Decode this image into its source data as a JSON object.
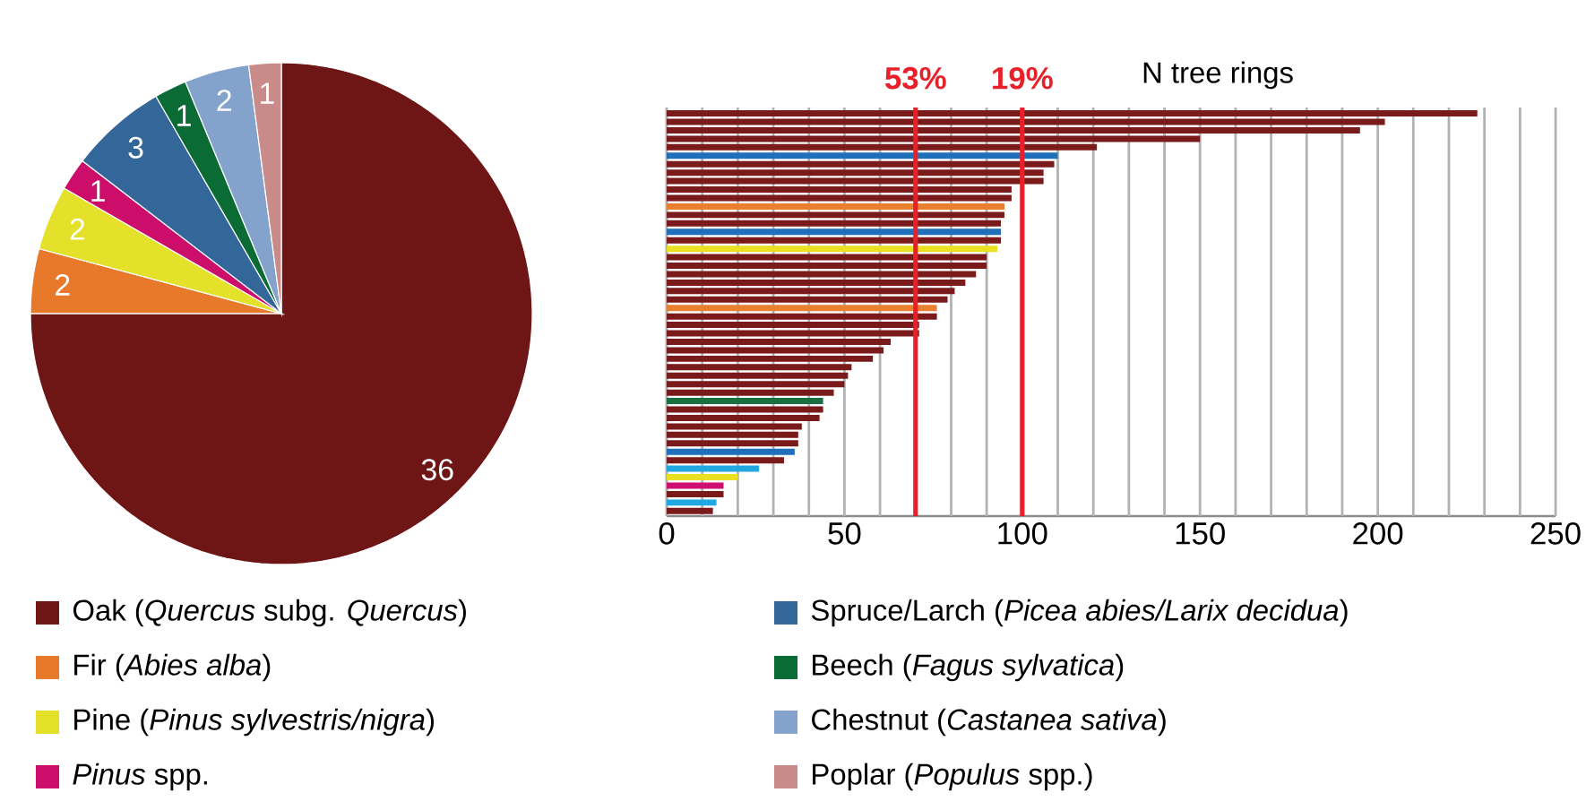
{
  "chart_data": [
    {
      "type": "pie",
      "categories": [
        "Oak (*Quercus* subg. *Quercus*)",
        "Fir (*Abies alba*)",
        "Pine (*Pinus sylvestris/nigra*)",
        "*Pinus* spp.",
        "Spruce/Larch (*Picea abies/Larix decidua*)",
        "Beech (*Fagus sylvatica*)",
        "Chestnut (*Castanea sativa*)",
        "Poplar (*Populus* spp.)"
      ],
      "values": [
        36,
        2,
        2,
        1,
        3,
        1,
        2,
        1
      ],
      "colors": [
        "#6e1515",
        "#e8782a",
        "#e5e02a",
        "#cc0e6a",
        "#336699",
        "#0b6b35",
        "#84a3cc",
        "#c98a8a"
      ],
      "data_labels": true,
      "legend": "bottom"
    },
    {
      "type": "bar",
      "orientation": "horizontal",
      "xlabel": "N tree rings",
      "categories": [
        null,
        null,
        null,
        null,
        null,
        null,
        null,
        null,
        null,
        null,
        null,
        null,
        null,
        null,
        null,
        null,
        null,
        null,
        null,
        null,
        null,
        null,
        null,
        null,
        null,
        null,
        null,
        null,
        null,
        null,
        null,
        null,
        null,
        null,
        null,
        null,
        null,
        null,
        null,
        null,
        null,
        null,
        null,
        null,
        null,
        null,
        null,
        null
      ],
      "values": [
        228,
        202,
        195,
        150,
        121,
        110,
        109,
        106,
        106,
        97,
        97,
        95,
        95,
        94,
        94,
        94,
        93,
        90,
        90,
        87,
        84,
        81,
        79,
        76,
        76,
        71,
        71,
        63,
        61,
        58,
        52,
        51,
        50,
        47,
        44,
        44,
        43,
        38,
        37,
        37,
        36,
        33,
        26,
        20,
        16,
        16,
        14,
        13
      ],
      "colors": [
        "#7a1a1a",
        "#7a1a1a",
        "#7a1a1a",
        "#7a1a1a",
        "#7a1a1a",
        "#1f6fba",
        "#7a1a1a",
        "#7a1a1a",
        "#7a1a1a",
        "#7a1a1a",
        "#7a1a1a",
        "#e88030",
        "#7a1a1a",
        "#7a1a1a",
        "#1f6fba",
        "#7a1a1a",
        "#e8e020",
        "#7a1a1a",
        "#7a1a1a",
        "#7a1a1a",
        "#7a1a1a",
        "#7a1a1a",
        "#7a1a1a",
        "#e88030",
        "#7a1a1a",
        "#7a1a1a",
        "#7a1a1a",
        "#7a1a1a",
        "#7a1a1a",
        "#7a1a1a",
        "#7a1a1a",
        "#7a1a1a",
        "#7a1a1a",
        "#7a1a1a",
        "#1a7040",
        "#7a1a1a",
        "#7a1a1a",
        "#7a1a1a",
        "#7a1a1a",
        "#7a1a1a",
        "#1f6fba",
        "#7a1a1a",
        "#20a8e0",
        "#e8e020",
        "#d01070",
        "#7a1a1a",
        "#20a8e0",
        "#7a1a1a"
      ],
      "xlim": [
        0,
        250
      ],
      "xticks": [
        0,
        {
          "value": 10,
          "label": null
        },
        {
          "value": 20,
          "label": null
        },
        {
          "value": 30,
          "label": null
        },
        {
          "value": 40,
          "label": null
        },
        50,
        {
          "value": 60,
          "label": null
        },
        {
          "value": 80,
          "label": null
        },
        {
          "value": 90,
          "label": null
        },
        100,
        {
          "value": 110,
          "label": null
        },
        {
          "value": 120,
          "label": null
        },
        {
          "value": 130,
          "label": null
        },
        {
          "value": 140,
          "label": null
        },
        150,
        {
          "value": 160,
          "label": null
        },
        {
          "value": 170,
          "label": null
        },
        {
          "value": 180,
          "label": null
        },
        {
          "value": 190,
          "label": null
        },
        200,
        {
          "value": 210,
          "label": null
        },
        {
          "value": 220,
          "label": null
        },
        {
          "value": 230,
          "label": null
        },
        {
          "value": 240,
          "label": null
        },
        250
      ],
      "grid": "x",
      "tick_labels": "x",
      "ref_lines": [
        {
          "axis": "x",
          "value": 70,
          "color": "#e8202a"
        },
        {
          "axis": "x",
          "value": 100,
          "color": "#e8202a"
        }
      ],
      "annotations": [
        "53%",
        "19%"
      ]
    }
  ]
}
